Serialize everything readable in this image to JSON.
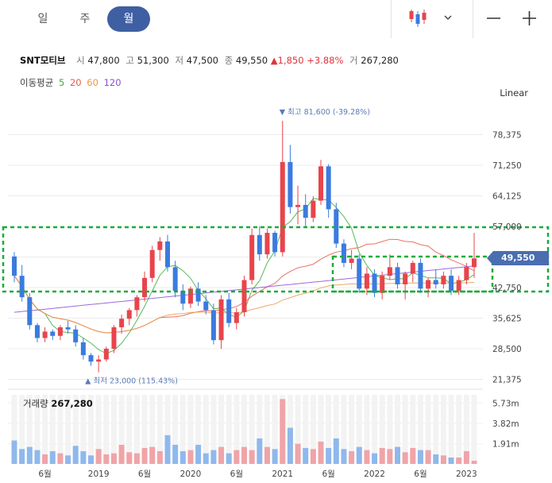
{
  "tabs": [
    {
      "label": "일",
      "active": false
    },
    {
      "label": "주",
      "active": false
    },
    {
      "label": "월",
      "active": true
    }
  ],
  "toolbar": {
    "chart_icon": "candlestick-icon",
    "dropdown_icon": "chevron-down-icon",
    "zoom_out_icon": "minus-icon",
    "zoom_in_icon": "plus-icon"
  },
  "quote": {
    "name": "SNT모티브",
    "open_label": "시",
    "open": "47,800",
    "high_label": "고",
    "high": "51,300",
    "low_label": "저",
    "low": "47,500",
    "close_label": "종",
    "close": "49,550",
    "change": "▲1,850",
    "change_pct": "+3.88%",
    "volume_label": "거",
    "volume": "267,280"
  },
  "moving_average": {
    "label": "이동평균",
    "periods": [
      {
        "label": "5",
        "color": "#3cab3c"
      },
      {
        "label": "20",
        "color": "#e8584a"
      },
      {
        "label": "60",
        "color": "#e69a4b"
      },
      {
        "label": "120",
        "color": "#8a4fd8"
      }
    ]
  },
  "scale_mode": "Linear",
  "current_price_tag": "49,550",
  "colors": {
    "up": "#e8444c",
    "down": "#3a7be0",
    "volume_up": "#f0a4a8",
    "volume_down": "#8fb8ec",
    "highlight": "#1aac3a",
    "price_tag": "#4a6eb0"
  },
  "volume_panel": {
    "label": "거래량",
    "value": "267,280",
    "ticks": [
      "5.73m",
      "3.82m",
      "1.91m"
    ]
  },
  "chart_data": {
    "type": "candlestick",
    "title": "",
    "y_ticks": [
      "78,375",
      "71,250",
      "64,125",
      "57,000",
      "49,875",
      "42,750",
      "35,625",
      "28,500",
      "21,375"
    ],
    "y_tick_values": [
      78375,
      71250,
      64125,
      57000,
      49875,
      42750,
      35625,
      28500,
      21375
    ],
    "ylim": [
      17000,
      88000
    ],
    "x_ticks": [
      {
        "label": "6월",
        "index": 4
      },
      {
        "label": "2019",
        "index": 11
      },
      {
        "label": "6월",
        "index": 17
      },
      {
        "label": "2020",
        "index": 23
      },
      {
        "label": "6월",
        "index": 29
      },
      {
        "label": "2021",
        "index": 35
      },
      {
        "label": "6월",
        "index": 41
      },
      {
        "label": "2022",
        "index": 47
      },
      {
        "label": "6월",
        "index": 53
      },
      {
        "label": "2023",
        "index": 59
      }
    ],
    "annotations": {
      "high": {
        "text": "최고 81,600 (-39.28%)",
        "index": 35,
        "value": 81600
      },
      "low": {
        "text": "최저 23,000 (115.43%)",
        "index": 11,
        "value": 23000
      }
    },
    "candles": [
      [
        50000,
        51000,
        44000,
        45500
      ],
      [
        45500,
        48000,
        39500,
        40500
      ],
      [
        40500,
        41500,
        33000,
        34000
      ],
      [
        34000,
        34500,
        30000,
        31000
      ],
      [
        31000,
        33500,
        30000,
        32500
      ],
      [
        32500,
        33000,
        30500,
        31500
      ],
      [
        31500,
        34000,
        30500,
        33500
      ],
      [
        33500,
        35000,
        32000,
        33000
      ],
      [
        33000,
        34000,
        29000,
        30000
      ],
      [
        30000,
        31000,
        26000,
        27000
      ],
      [
        27000,
        27500,
        24500,
        25500
      ],
      [
        25500,
        27000,
        23000,
        26000
      ],
      [
        26000,
        29000,
        25500,
        28500
      ],
      [
        28500,
        34000,
        27500,
        33500
      ],
      [
        33500,
        36500,
        32000,
        35500
      ],
      [
        35500,
        38000,
        34000,
        37500
      ],
      [
        37500,
        41000,
        36000,
        40500
      ],
      [
        40500,
        46500,
        39500,
        45000
      ],
      [
        45000,
        52500,
        44000,
        51500
      ],
      [
        51500,
        54500,
        49000,
        53500
      ],
      [
        53500,
        55000,
        46500,
        47500
      ],
      [
        47500,
        49000,
        40500,
        42000
      ],
      [
        42000,
        43500,
        37500,
        39000
      ],
      [
        39000,
        43000,
        38000,
        42500
      ],
      [
        42500,
        44000,
        38500,
        39500
      ],
      [
        39500,
        41000,
        36500,
        37500
      ],
      [
        37500,
        39000,
        29500,
        30500
      ],
      [
        30500,
        41000,
        28500,
        40000
      ],
      [
        40000,
        41500,
        33500,
        34500
      ],
      [
        34500,
        38000,
        33000,
        37000
      ],
      [
        37000,
        45500,
        36000,
        44500
      ],
      [
        44500,
        56500,
        43500,
        55000
      ],
      [
        55000,
        57000,
        49000,
        50500
      ],
      [
        50500,
        56500,
        49500,
        55500
      ],
      [
        55500,
        56000,
        50000,
        51000
      ],
      [
        51000,
        81600,
        50000,
        72000
      ],
      [
        72000,
        76000,
        60000,
        61500
      ],
      [
        61500,
        66500,
        57500,
        62000
      ],
      [
        62000,
        64500,
        57000,
        59000
      ],
      [
        59000,
        64000,
        58000,
        63000
      ],
      [
        63000,
        72500,
        62000,
        71000
      ],
      [
        71000,
        71500,
        59000,
        61000
      ],
      [
        61000,
        62500,
        52000,
        53000
      ],
      [
        53000,
        54000,
        47500,
        48500
      ],
      [
        48500,
        51500,
        47000,
        49500
      ],
      [
        49500,
        50500,
        41500,
        42500
      ],
      [
        42500,
        47500,
        41000,
        46000
      ],
      [
        46000,
        47000,
        40500,
        41500
      ],
      [
        41500,
        46500,
        40000,
        45500
      ],
      [
        45500,
        50500,
        44500,
        47500
      ],
      [
        47500,
        48500,
        42500,
        43500
      ],
      [
        43500,
        46500,
        40000,
        46000
      ],
      [
        46000,
        49000,
        44000,
        48500
      ],
      [
        48500,
        49500,
        41500,
        42500
      ],
      [
        42500,
        45000,
        40500,
        44500
      ],
      [
        44500,
        47000,
        42500,
        43500
      ],
      [
        43500,
        46500,
        42500,
        45500
      ],
      [
        45500,
        47000,
        41000,
        42000
      ],
      [
        42000,
        45500,
        41000,
        44500
      ],
      [
        44500,
        48500,
        43500,
        47500
      ],
      [
        47500,
        55500,
        45000,
        49550
      ]
    ],
    "volumes": [
      2.2,
      1.4,
      1.6,
      1.3,
      0.9,
      1.2,
      1.0,
      0.8,
      1.7,
      1.2,
      0.8,
      1.4,
      0.9,
      1.0,
      1.8,
      1.1,
      1.0,
      1.5,
      1.6,
      1.2,
      2.7,
      1.8,
      1.2,
      1.3,
      1.8,
      1.0,
      1.3,
      1.6,
      1.0,
      1.3,
      1.6,
      1.3,
      2.4,
      1.6,
      1.4,
      6.1,
      3.4,
      1.9,
      1.5,
      1.4,
      2.1,
      1.5,
      2.4,
      1.4,
      1.2,
      1.6,
      1.3,
      1.0,
      1.5,
      1.4,
      1.6,
      1.1,
      1.5,
      1.3,
      1.3,
      0.9,
      0.8,
      0.6,
      0.6,
      1.2,
      0.3
    ],
    "volume_ylim": [
      0,
      6.5
    ]
  }
}
